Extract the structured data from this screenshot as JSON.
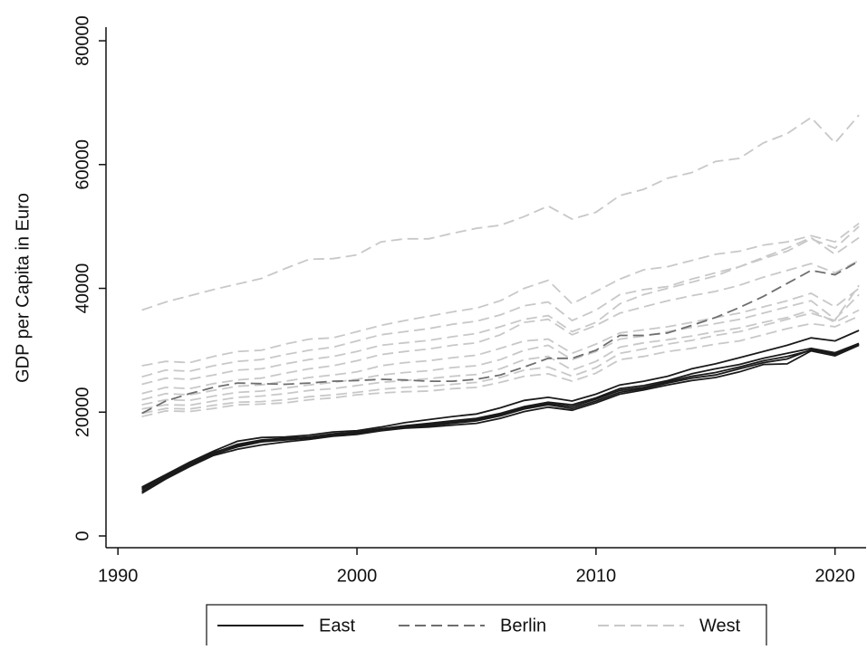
{
  "chart_data": {
    "type": "line",
    "y_label": "GDP per Capita in Euro",
    "x": [
      1991,
      1992,
      1993,
      1994,
      1995,
      1996,
      1997,
      1998,
      1999,
      2000,
      2001,
      2002,
      2003,
      2004,
      2005,
      2006,
      2007,
      2008,
      2009,
      2010,
      2011,
      2012,
      2013,
      2014,
      2015,
      2016,
      2017,
      2018,
      2019,
      2020,
      2021
    ],
    "xlim": [
      1989.5,
      2021.3
    ],
    "xticks": [
      1990,
      2000,
      2010,
      2020
    ],
    "ylim": [
      -1900,
      82200
    ],
    "yticks": [
      0,
      20000,
      40000,
      60000,
      80000
    ],
    "grid": false,
    "legend": "bottom",
    "series": [
      {
        "name": "East",
        "color": "#1a1a1a",
        "dash": "none",
        "lines": [
          {
            "values": [
              7900,
              9900,
              11900,
              13700,
              15300,
              15900,
              16000,
              16300,
              16800,
              17000,
              17600,
              18300,
              18800,
              19300,
              19700,
              20700,
              21900,
              22400,
              21800,
              22900,
              24400,
              25000,
              25800,
              27000,
              27800,
              28800,
              29800,
              30800,
              32000,
              31500,
              33200
            ]
          },
          {
            "values": [
              7500,
              9600,
              11500,
              13400,
              14800,
              15500,
              15800,
              16000,
              16500,
              16800,
              17300,
              17800,
              18200,
              18600,
              19000,
              19800,
              20900,
              21600,
              21200,
              22300,
              23800,
              24300,
              25100,
              26200,
              27000,
              27700,
              28700,
              29500,
              30300,
              29600,
              31100
            ]
          },
          {
            "values": [
              7200,
              9400,
              11300,
              13200,
              14400,
              15200,
              15500,
              15800,
              16300,
              16600,
              17100,
              17500,
              17800,
              18200,
              18600,
              19400,
              20500,
              21200,
              20600,
              21800,
              23200,
              23800,
              24700,
              25500,
              26000,
              27000,
              28000,
              28600,
              30100,
              29400,
              30900
            ]
          },
          {
            "values": [
              6900,
              9200,
              11200,
              13000,
              14000,
              14700,
              15200,
              15600,
              16100,
              16400,
              17000,
              17400,
              17600,
              17900,
              18200,
              19000,
              20100,
              20800,
              20300,
              21500,
              22900,
              23600,
              24400,
              25100,
              25600,
              26500,
              27700,
              27800,
              29900,
              29100,
              30800
            ]
          },
          {
            "values": [
              7700,
              9800,
              11700,
              13500,
              14600,
              15300,
              15600,
              15900,
              16400,
              16700,
              17200,
              17700,
              18000,
              18400,
              18800,
              19600,
              20700,
              21400,
              20900,
              22100,
              23500,
              24000,
              24900,
              25800,
              26400,
              27300,
              28300,
              29000,
              30000,
              29300,
              31000
            ]
          }
        ]
      },
      {
        "name": "Berlin",
        "color": "#6e6e6e",
        "dash": "12 6",
        "lines": [
          {
            "values": [
              19800,
              21800,
              23000,
              24000,
              24700,
              24600,
              24500,
              24700,
              25000,
              25100,
              25300,
              25200,
              25000,
              25000,
              25300,
              26000,
              27300,
              28700,
              28700,
              30000,
              32400,
              32400,
              32800,
              34000,
              35300,
              36900,
              38700,
              40800,
              42900,
              42200,
              44400
            ]
          }
        ]
      },
      {
        "name": "West",
        "color": "#c8c8c8",
        "dash": "12 6",
        "lines": [
          {
            "values": [
              36500,
              37800,
              38800,
              39800,
              40700,
              41600,
              43200,
              44700,
              44800,
              45400,
              47500,
              48000,
              48000,
              48900,
              49700,
              50200,
              51600,
              53300,
              51200,
              52300,
              55000,
              56000,
              57800,
              58700,
              60500,
              61000,
              63500,
              65000,
              67600,
              63500,
              68000
            ]
          },
          {
            "values": [
              27500,
              28200,
              28000,
              29000,
              29800,
              30000,
              31000,
              31800,
              32000,
              33000,
              34000,
              34800,
              35500,
              36200,
              36800,
              38000,
              40000,
              41300,
              37500,
              39500,
              41500,
              43000,
              43500,
              44500,
              45500,
              46000,
              47000,
              47500,
              48500,
              47500,
              50500
            ]
          },
          {
            "values": [
              25700,
              26800,
              26600,
              27500,
              28200,
              28500,
              29300,
              30000,
              30500,
              31500,
              32500,
              33000,
              33500,
              34200,
              34700,
              35700,
              37200,
              37800,
              34800,
              36500,
              39000,
              39800,
              40300,
              41500,
              42500,
              43500,
              44800,
              46000,
              48000,
              46500,
              50000
            ]
          },
          {
            "values": [
              24500,
              25500,
              25300,
              26000,
              26800,
              27000,
              27800,
              28500,
              29000,
              29800,
              30800,
              31200,
              31600,
              32200,
              32700,
              33800,
              35000,
              35600,
              33000,
              34500,
              37500,
              39000,
              40000,
              41000,
              42000,
              43500,
              45000,
              46500,
              48200,
              45500,
              48200
            ]
          },
          {
            "values": [
              23000,
              24000,
              23800,
              24600,
              25200,
              25500,
              26300,
              27000,
              27500,
              28300,
              29300,
              29800,
              30200,
              30800,
              31200,
              32500,
              34500,
              35000,
              32500,
              34000,
              36000,
              37000,
              38000,
              38800,
              39500,
              40500,
              41800,
              42900,
              44000,
              42500,
              44500
            ]
          },
          {
            "values": [
              22000,
              23000,
              22800,
              23500,
              24200,
              24400,
              25000,
              25600,
              26000,
              26500,
              27500,
              28000,
              28300,
              28800,
              29200,
              30300,
              31500,
              31800,
              29500,
              31000,
              32800,
              33300,
              33800,
              34500,
              35300,
              36000,
              37000,
              38000,
              39200,
              37000,
              40000
            ]
          },
          {
            "values": [
              21200,
              22000,
              21900,
              22600,
              23200,
              23400,
              23900,
              24400,
              24800,
              25300,
              26000,
              26400,
              26700,
              27200,
              27500,
              28500,
              30000,
              30800,
              28500,
              29800,
              31800,
              32300,
              33000,
              33700,
              34300,
              35000,
              36000,
              37000,
              38000,
              35000,
              39000
            ]
          },
          {
            "values": [
              20500,
              21200,
              21100,
              21800,
              22400,
              22600,
              23000,
              23500,
              23800,
              24300,
              24800,
              25100,
              25400,
              25800,
              26100,
              27000,
              28500,
              29000,
              26800,
              28200,
              30500,
              31200,
              31700,
              32300,
              33000,
              33600,
              34500,
              35300,
              36500,
              34500,
              36500
            ]
          },
          {
            "values": [
              19800,
              20600,
              20500,
              21100,
              21600,
              21700,
              22000,
              22500,
              22800,
              23200,
              23700,
              24000,
              24200,
              24500,
              24800,
              25600,
              26800,
              27300,
              25800,
              27200,
              29500,
              30200,
              31000,
              31600,
              32400,
              33000,
              34000,
              35000,
              36000,
              34800,
              40500
            ]
          },
          {
            "values": [
              19300,
              20200,
              20100,
              20600,
              21200,
              21300,
              21500,
              22000,
              22300,
              22800,
              23100,
              23300,
              23400,
              23800,
              24000,
              24800,
              25800,
              26200,
              25000,
              26300,
              28500,
              29000,
              29800,
              30300,
              31000,
              31500,
              32500,
              33500,
              34300,
              33800,
              35500
            ]
          }
        ]
      }
    ]
  }
}
